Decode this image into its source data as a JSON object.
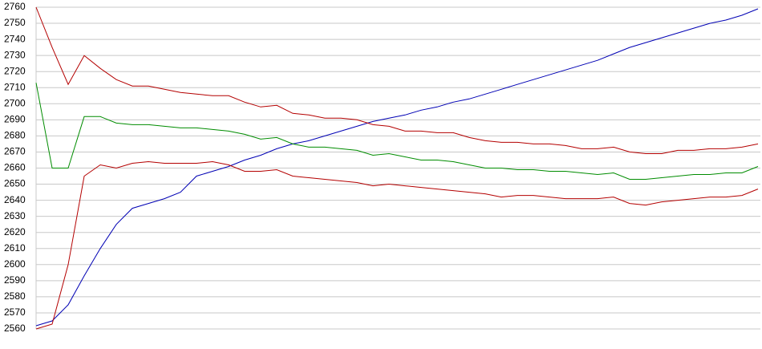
{
  "chart_data": {
    "type": "line",
    "ylim": [
      2560,
      2760
    ],
    "yticks": [
      2560,
      2570,
      2580,
      2590,
      2600,
      2610,
      2620,
      2630,
      2640,
      2650,
      2660,
      2670,
      2680,
      2690,
      2700,
      2710,
      2720,
      2730,
      2740,
      2750,
      2760
    ],
    "grid": true,
    "series": [
      {
        "color": "#0000b4",
        "values": [
          2562,
          2565,
          2575,
          2593,
          2610,
          2625,
          2635,
          2638,
          2641,
          2645,
          2655,
          2658,
          2661,
          2665,
          2668,
          2672,
          2675,
          2677,
          2680,
          2683,
          2686,
          2689,
          2691,
          2693,
          2696,
          2698,
          2701,
          2703,
          2706,
          2709,
          2712,
          2715,
          2718,
          2721,
          2724,
          2727,
          2731,
          2735,
          2738,
          2741,
          2744,
          2747,
          2750,
          2752,
          2755,
          2759
        ]
      },
      {
        "color": "#b40000",
        "values": [
          2760,
          2735,
          2712,
          2730,
          2722,
          2715,
          2711,
          2711,
          2709,
          2707,
          2706,
          2705,
          2705,
          2701,
          2698,
          2699,
          2694,
          2693,
          2691,
          2691,
          2690,
          2687,
          2686,
          2683,
          2683,
          2682,
          2682,
          2679,
          2677,
          2676,
          2676,
          2675,
          2675,
          2674,
          2672,
          2672,
          2673,
          2670,
          2669,
          2669,
          2671,
          2671,
          2672,
          2672,
          2673,
          2675
        ]
      },
      {
        "color": "#008c00",
        "values": [
          2713,
          2660,
          2660,
          2692,
          2692,
          2688,
          2687,
          2687,
          2686,
          2685,
          2685,
          2684,
          2683,
          2681,
          2678,
          2679,
          2675,
          2673,
          2673,
          2672,
          2671,
          2668,
          2669,
          2667,
          2665,
          2665,
          2664,
          2662,
          2660,
          2660,
          2659,
          2659,
          2658,
          2658,
          2657,
          2656,
          2657,
          2653,
          2653,
          2654,
          2655,
          2656,
          2656,
          2657,
          2657,
          2661
        ]
      },
      {
        "color": "#b40000",
        "values": [
          2560,
          2563,
          2600,
          2655,
          2662,
          2660,
          2663,
          2664,
          2663,
          2663,
          2663,
          2664,
          2662,
          2658,
          2658,
          2659,
          2655,
          2654,
          2653,
          2652,
          2651,
          2649,
          2650,
          2649,
          2648,
          2647,
          2646,
          2645,
          2644,
          2642,
          2643,
          2643,
          2642,
          2641,
          2641,
          2641,
          2642,
          2638,
          2637,
          2639,
          2640,
          2641,
          2642,
          2642,
          2643,
          2647
        ]
      }
    ]
  }
}
